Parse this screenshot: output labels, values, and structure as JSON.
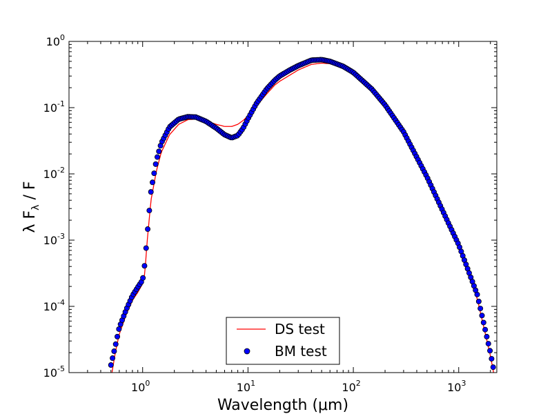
{
  "chart_data": {
    "type": "line",
    "xlabel": "Wavelength (μm)",
    "ylabel": "λ F_λ / F",
    "xscale": "log",
    "yscale": "log",
    "xlim": [
      0.2,
      2300
    ],
    "ylim": [
      1e-05,
      1
    ],
    "grid": false,
    "legend_position": "bottom-center",
    "xticks": [
      {
        "value": 1,
        "base": "10",
        "exp": "0"
      },
      {
        "value": 10,
        "base": "10",
        "exp": "1"
      },
      {
        "value": 100,
        "base": "10",
        "exp": "2"
      },
      {
        "value": 1000,
        "base": "10",
        "exp": "3"
      }
    ],
    "yticks": [
      {
        "value": 1e-05,
        "base": "10",
        "exp": "-5"
      },
      {
        "value": 0.0001,
        "base": "10",
        "exp": "-4"
      },
      {
        "value": 0.001,
        "base": "10",
        "exp": "-3"
      },
      {
        "value": 0.01,
        "base": "10",
        "exp": "-2"
      },
      {
        "value": 0.1,
        "base": "10",
        "exp": "-1"
      },
      {
        "value": 1,
        "base": "10",
        "exp": "0"
      }
    ],
    "series": [
      {
        "name": "DS test",
        "style": "line",
        "color": "#ff0000",
        "x": [
          0.5,
          0.55,
          0.6,
          0.7,
          0.8,
          0.9,
          1.0,
          1.05,
          1.1,
          1.2,
          1.35,
          1.5,
          1.8,
          2.2,
          2.7,
          3.2,
          4.0,
          5.0,
          6.0,
          7.0,
          8.0,
          9.0,
          10.0,
          12.0,
          15.0,
          18.0,
          20.0,
          25.0,
          30.0,
          40.0,
          50.0,
          60.0,
          80.0,
          100.0,
          150.0,
          200.0,
          300.0,
          500.0,
          800.0,
          1000.0,
          1500.0,
          2000.0,
          2200.0
        ],
        "y": [
          8e-06,
          2e-05,
          3.8e-05,
          7.6e-05,
          0.000123,
          0.000163,
          0.00022,
          0.00032,
          0.0009,
          0.004,
          0.011,
          0.021,
          0.039,
          0.056,
          0.066,
          0.067,
          0.063,
          0.056,
          0.052,
          0.052,
          0.056,
          0.064,
          0.075,
          0.105,
          0.16,
          0.22,
          0.25,
          0.31,
          0.37,
          0.45,
          0.47,
          0.46,
          0.4,
          0.33,
          0.19,
          0.11,
          0.042,
          0.0085,
          0.0016,
          0.00075,
          0.00013,
          1.8e-05,
          8e-06
        ]
      },
      {
        "name": "BM test",
        "style": "scatter",
        "color": "#0000ff",
        "x": [
          0.5,
          0.55,
          0.6,
          0.7,
          0.8,
          0.9,
          1.0,
          1.05,
          1.1,
          1.2,
          1.35,
          1.5,
          1.8,
          2.2,
          2.7,
          3.2,
          4.0,
          5.0,
          6.0,
          7.0,
          8.0,
          9.0,
          10.0,
          12.0,
          15.0,
          18.0,
          20.0,
          25.0,
          30.0,
          40.0,
          50.0,
          60.0,
          80.0,
          100.0,
          150.0,
          200.0,
          300.0,
          500.0,
          800.0,
          1000.0,
          1500.0,
          2000.0,
          2200.0
        ],
        "y": [
          1.3e-05,
          2.5e-05,
          4.8e-05,
          9e-05,
          0.000145,
          0.000195,
          0.00025,
          0.00045,
          0.0011,
          0.0055,
          0.016,
          0.029,
          0.051,
          0.067,
          0.073,
          0.072,
          0.062,
          0.049,
          0.039,
          0.035,
          0.038,
          0.049,
          0.068,
          0.115,
          0.19,
          0.26,
          0.3,
          0.37,
          0.43,
          0.52,
          0.53,
          0.5,
          0.42,
          0.34,
          0.19,
          0.11,
          0.043,
          0.009,
          0.0018,
          0.00085,
          0.00015,
          2e-05,
          9e-06
        ]
      }
    ]
  },
  "colors": {
    "line": "#ff0000",
    "marker_fill": "#0000ff",
    "marker_edge": "#000000",
    "axes": "#000000",
    "background": "#ffffff"
  }
}
